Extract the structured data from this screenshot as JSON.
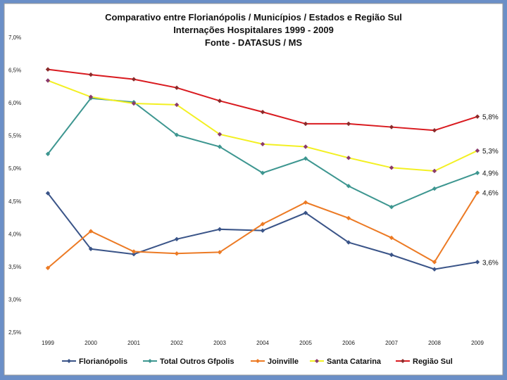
{
  "chart_data": {
    "type": "line",
    "title": [
      "Comparativo entre Florianópolis / Municípios / Estados e Região Sul",
      "Internações Hospitalares 1999 - 2009",
      "Fonte - DATASUS / MS"
    ],
    "xlabel": "",
    "ylabel": "",
    "categories": [
      "1999",
      "2000",
      "2001",
      "2002",
      "2003",
      "2004",
      "2005",
      "2006",
      "2007",
      "2008",
      "2009"
    ],
    "ylim": [
      2.5,
      7.0
    ],
    "yticks": [
      "2,5%",
      "3,0%",
      "3,5%",
      "4,0%",
      "4,5%",
      "5,0%",
      "5,5%",
      "6,0%",
      "6,5%",
      "7,0%"
    ],
    "grid": false,
    "legend_position": "bottom",
    "series": [
      {
        "name": "Florianópolis",
        "color": "#3a5488",
        "values": [
          4.62,
          3.77,
          3.69,
          3.92,
          4.07,
          4.05,
          4.32,
          3.87,
          3.68,
          3.46,
          3.57
        ],
        "end_label": "3,6%"
      },
      {
        "name": "Total Outros Gfpolis",
        "color": "#3d9690",
        "values": [
          5.22,
          6.07,
          6.01,
          5.51,
          5.33,
          4.93,
          5.15,
          4.73,
          4.41,
          4.69,
          4.93
        ],
        "end_label": "4,9%"
      },
      {
        "name": "Joinville",
        "color": "#ec7a24",
        "values": [
          3.48,
          4.04,
          3.73,
          3.7,
          3.72,
          4.15,
          4.48,
          4.24,
          3.94,
          3.57,
          4.63
        ],
        "end_label": "4,6%"
      },
      {
        "name": "Santa Catarina",
        "color": "#f3f023",
        "marker_color": "#8b3a6b",
        "values": [
          6.34,
          6.09,
          5.99,
          5.97,
          5.52,
          5.37,
          5.33,
          5.16,
          5.01,
          4.96,
          5.27
        ],
        "end_label": "5,3%"
      },
      {
        "name": "Região Sul",
        "color": "#d91a1f",
        "marker_color": "#8b2a2a",
        "values": [
          6.51,
          6.43,
          6.36,
          6.23,
          6.03,
          5.86,
          5.68,
          5.68,
          5.63,
          5.58,
          5.79
        ],
        "end_label": "5,8%"
      }
    ]
  }
}
